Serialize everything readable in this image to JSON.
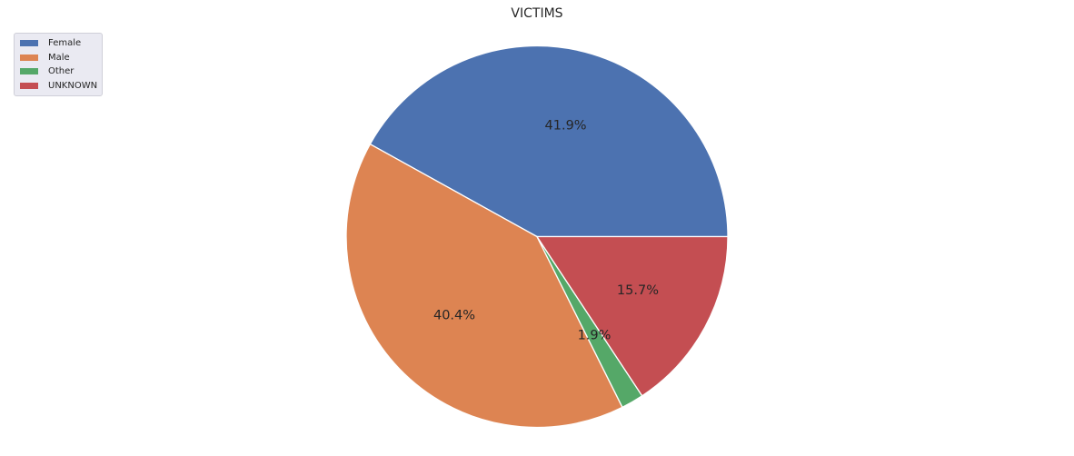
{
  "chart_data": {
    "type": "pie",
    "title": "VICTIMS",
    "labels": [
      "Female",
      "Male",
      "Other",
      "UNKNOWN"
    ],
    "values": [
      41.9,
      40.4,
      1.9,
      15.7
    ],
    "autopct": [
      "41.9%",
      "40.4%",
      "1.9%",
      "15.7%"
    ],
    "colors": [
      "#4c72b0",
      "#dd8452",
      "#55a868",
      "#c44e52"
    ],
    "start_angle_deg": 0,
    "direction": "counterclockwise",
    "legend_position": "top-left"
  }
}
